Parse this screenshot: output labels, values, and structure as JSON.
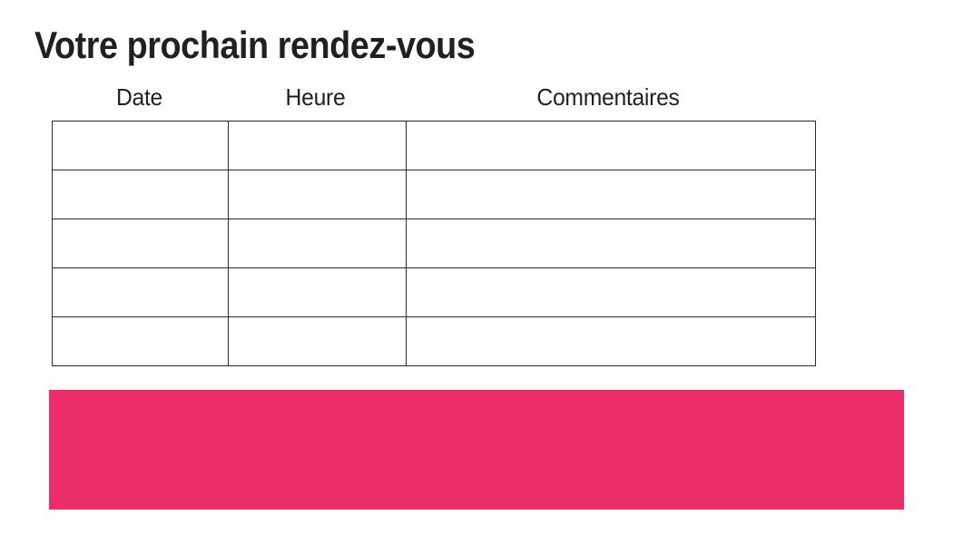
{
  "title": "Votre prochain rendez-vous",
  "table": {
    "columns": [
      {
        "label": "Date"
      },
      {
        "label": "Heure"
      },
      {
        "label": "Commentaires"
      }
    ],
    "row_count": 5,
    "cells": [
      [
        "",
        "",
        ""
      ],
      [
        "",
        "",
        ""
      ],
      [
        "",
        "",
        ""
      ],
      [
        "",
        "",
        ""
      ],
      [
        "",
        "",
        ""
      ]
    ]
  },
  "banner": {
    "color": "#ED2D67",
    "text": ""
  },
  "colors": {
    "background": "#FFFFFF",
    "text": "#231F20",
    "table_border": "#2B2B2B",
    "accent": "#ED2D67"
  }
}
